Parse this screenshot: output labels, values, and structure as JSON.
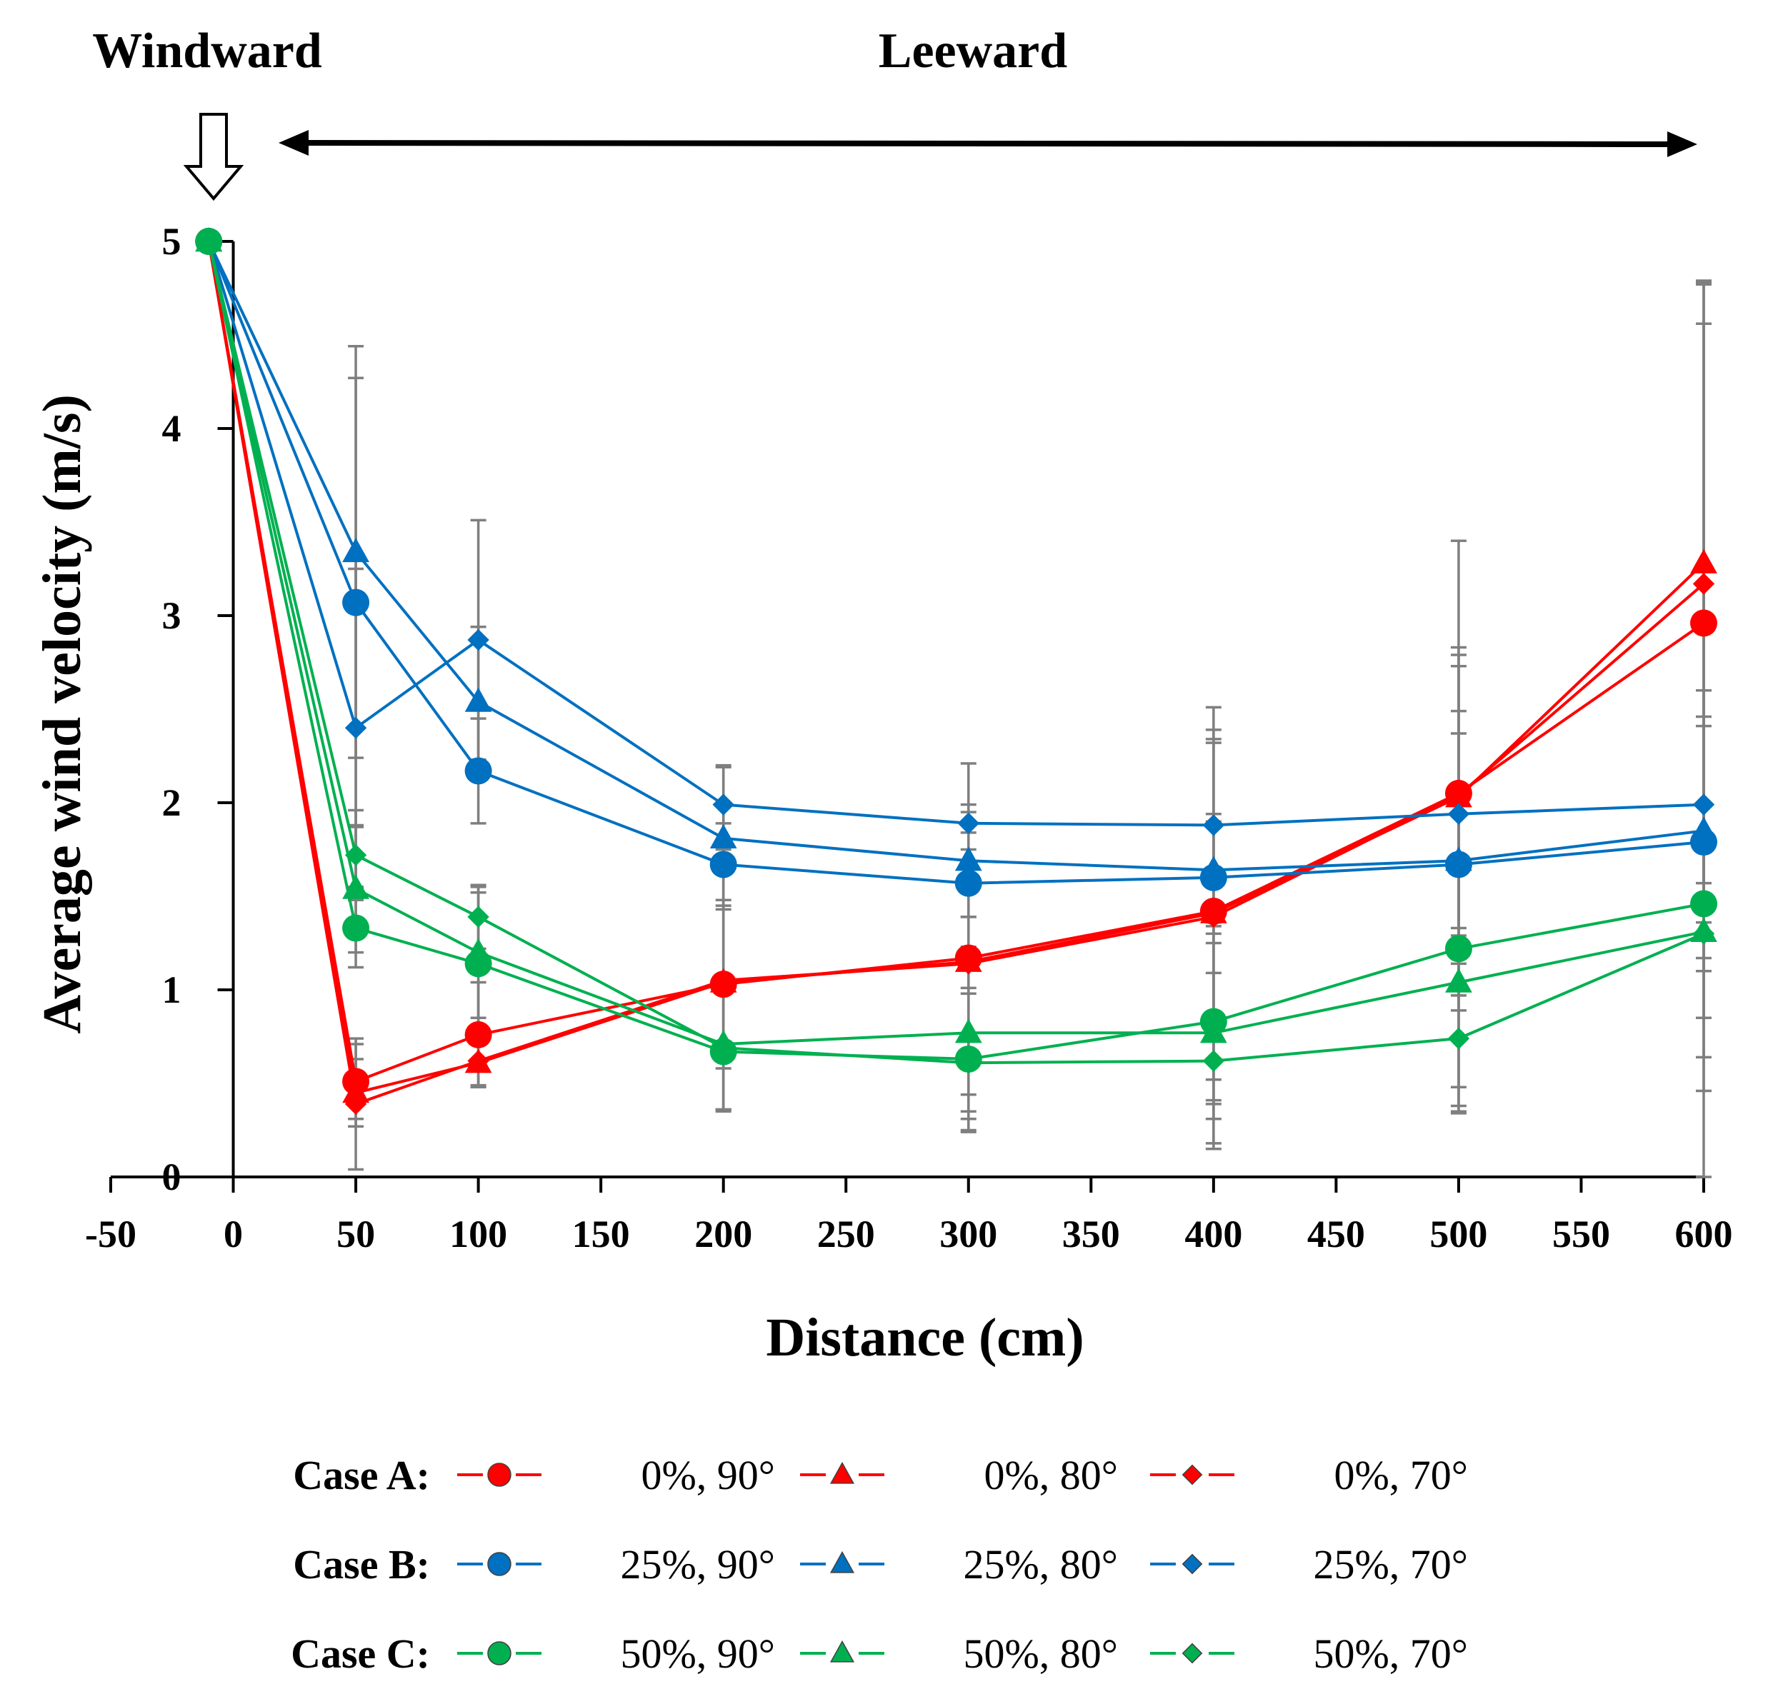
{
  "chart_data": {
    "type": "line",
    "title": "",
    "xlabel": "Distance (cm)",
    "ylabel": "Average wind velocity (m/s)",
    "xlim": [
      -50,
      600
    ],
    "ylim": [
      0,
      5
    ],
    "x_ticks": [
      "-50",
      "0",
      "50",
      "100",
      "150",
      "200",
      "250",
      "300",
      "350",
      "400",
      "450",
      "500",
      "550",
      "600"
    ],
    "y_ticks": [
      "0",
      "1",
      "2",
      "3",
      "4",
      "5"
    ],
    "annotations": {
      "windward": "Windward",
      "leeward": "Leeward"
    },
    "x": [
      -10,
      50,
      100,
      200,
      300,
      400,
      500,
      600
    ],
    "legend": {
      "placement": "bottom",
      "groups": [
        {
          "case": "Case A:",
          "color": "#ff0000"
        },
        {
          "case": "Case B:",
          "color": "#0070c0"
        },
        {
          "case": "Case C:",
          "color": "#00b050"
        }
      ]
    },
    "series": [
      {
        "name": "0%, 90°",
        "case": "Case A:",
        "color": "#ff0000",
        "marker": "circle",
        "values": [
          5.0,
          0.51,
          0.76,
          1.03,
          1.17,
          1.42,
          2.05,
          2.96
        ],
        "errors": [
          0,
          0.2,
          0.28,
          0.45,
          0.5,
          0.9,
          0.78,
          1.6
        ]
      },
      {
        "name": "0%, 80°",
        "case": "Case A:",
        "color": "#ff0000",
        "marker": "triangle",
        "values": [
          5.0,
          0.45,
          0.61,
          1.04,
          1.15,
          1.41,
          2.03,
          3.28
        ],
        "errors": [
          0,
          0.18,
          0.12,
          0.68,
          0.8,
          1.1,
          0.7,
          1.5
        ]
      },
      {
        "name": "0%, 70°",
        "case": "Case A:",
        "color": "#ff0000",
        "marker": "diamond",
        "values": [
          5.0,
          0.39,
          0.62,
          1.05,
          1.14,
          1.39,
          2.04,
          3.17
        ],
        "errors": [
          0,
          0.35,
          0.14,
          0.7,
          0.7,
          1.0,
          0.75,
          1.6
        ]
      },
      {
        "name": "25%, 90°",
        "case": "Case B:",
        "color": "#0070c0",
        "marker": "circle",
        "values": [
          5.0,
          3.07,
          2.17,
          1.67,
          1.57,
          1.6,
          1.67,
          1.79
        ],
        "errors": [
          0,
          1.2,
          0.28,
          0.22,
          0.18,
          0.3,
          0.7,
          0.62
        ]
      },
      {
        "name": "25%, 80°",
        "case": "Case B:",
        "color": "#0070c0",
        "marker": "triangle",
        "values": [
          5.0,
          3.34,
          2.54,
          1.81,
          1.69,
          1.64,
          1.69,
          1.85
        ],
        "errors": [
          0,
          1.1,
          0.4,
          0.38,
          0.3,
          0.3,
          0.8,
          0.75
        ]
      },
      {
        "name": "25%, 70°",
        "case": "Case B:",
        "color": "#0070c0",
        "marker": "diamond",
        "values": [
          5.0,
          2.4,
          2.87,
          1.99,
          1.89,
          1.88,
          1.94,
          1.99
        ],
        "errors": [
          0,
          0.85,
          0.64,
          0.21,
          0.32,
          0.46,
          1.46,
          2.8
        ]
      },
      {
        "name": "50%, 90°",
        "case": "Case C:",
        "color": "#00b050",
        "marker": "circle",
        "values": [
          5.0,
          1.33,
          1.14,
          0.67,
          0.63,
          0.83,
          1.22,
          1.46
        ],
        "errors": [
          0,
          0.21,
          0.38,
          0.31,
          0.38,
          0.42,
          0.87,
          1.0
        ]
      },
      {
        "name": "50%, 80°",
        "case": "Case C:",
        "color": "#00b050",
        "marker": "triangle",
        "values": [
          5.0,
          1.54,
          1.2,
          0.71,
          0.77,
          0.77,
          1.04,
          1.31
        ],
        "errors": [
          0,
          0.34,
          0.35,
          0.35,
          0.46,
          0.59,
          0.66,
          0.67
        ]
      },
      {
        "name": "50%, 70°",
        "case": "Case C:",
        "color": "#00b050",
        "marker": "diamond",
        "values": [
          5.0,
          1.72,
          1.39,
          0.69,
          0.61,
          0.62,
          0.74,
          1.3
        ],
        "errors": [
          0,
          0.24,
          0.17,
          0.33,
          0.37,
          0.47,
          0.4,
          0.45
        ]
      }
    ]
  }
}
